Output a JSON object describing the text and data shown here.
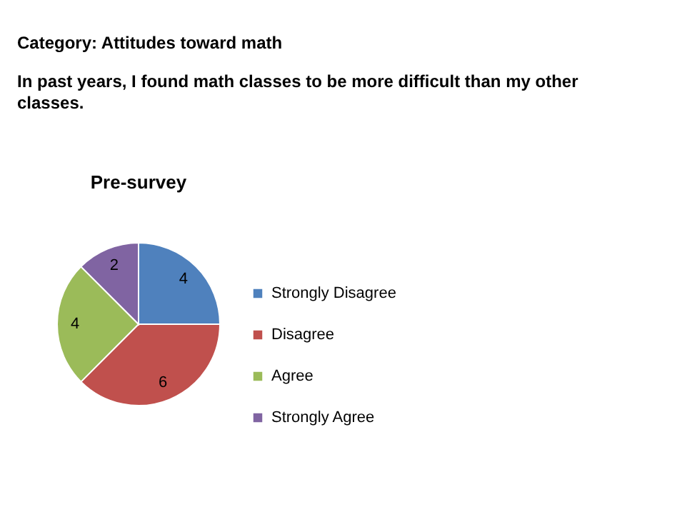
{
  "chart_data": {
    "type": "pie",
    "title": "Pre-survey",
    "annotations": [
      "Category: Attitudes toward math",
      "In past years, I found math classes to be more difficult than my other classes."
    ],
    "categories": [
      "Strongly Disagree",
      "Disagree",
      "Agree",
      "Strongly Agree"
    ],
    "values": [
      4,
      6,
      4,
      2
    ],
    "colors": [
      "#4f81bd",
      "#c0504d",
      "#9bbb59",
      "#8064a2"
    ],
    "data_labels": true,
    "legend": "right"
  }
}
